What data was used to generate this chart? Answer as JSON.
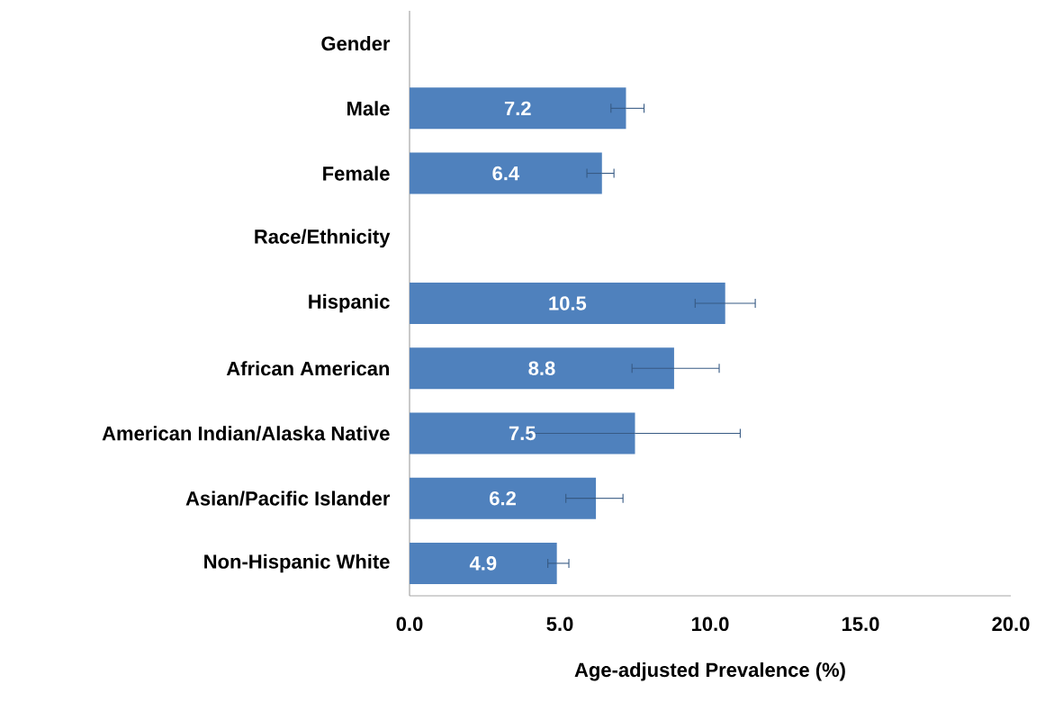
{
  "chart_data": {
    "type": "bar",
    "orientation": "horizontal",
    "xlabel": "Age-adjusted Prevalence (%)",
    "categories": [
      "Gender",
      "Male",
      "Female",
      "Race/Ethnicity",
      "Hispanic",
      "African American",
      "American Indian/Alaska Native",
      "Asian/Pacific Islander",
      "Non-Hispanic White"
    ],
    "values": [
      null,
      7.2,
      6.4,
      null,
      10.5,
      8.8,
      7.5,
      6.2,
      4.9
    ],
    "errors": [
      null,
      [
        6.7,
        7.8
      ],
      [
        5.9,
        6.8
      ],
      null,
      [
        9.5,
        11.5
      ],
      [
        7.4,
        10.3
      ],
      [
        4.0,
        11.0
      ],
      [
        5.2,
        7.1
      ],
      [
        4.6,
        5.3
      ]
    ],
    "color": "#4f81bd",
    "data_labels": true,
    "xlim": [
      0,
      20
    ],
    "xticks": [
      {
        "value": 0,
        "label": "0.0"
      },
      {
        "value": 5,
        "label": "5.0"
      },
      {
        "value": 10,
        "label": "10.0"
      },
      {
        "value": 15,
        "label": "15.0"
      },
      {
        "value": 20,
        "label": "20.0"
      }
    ]
  }
}
